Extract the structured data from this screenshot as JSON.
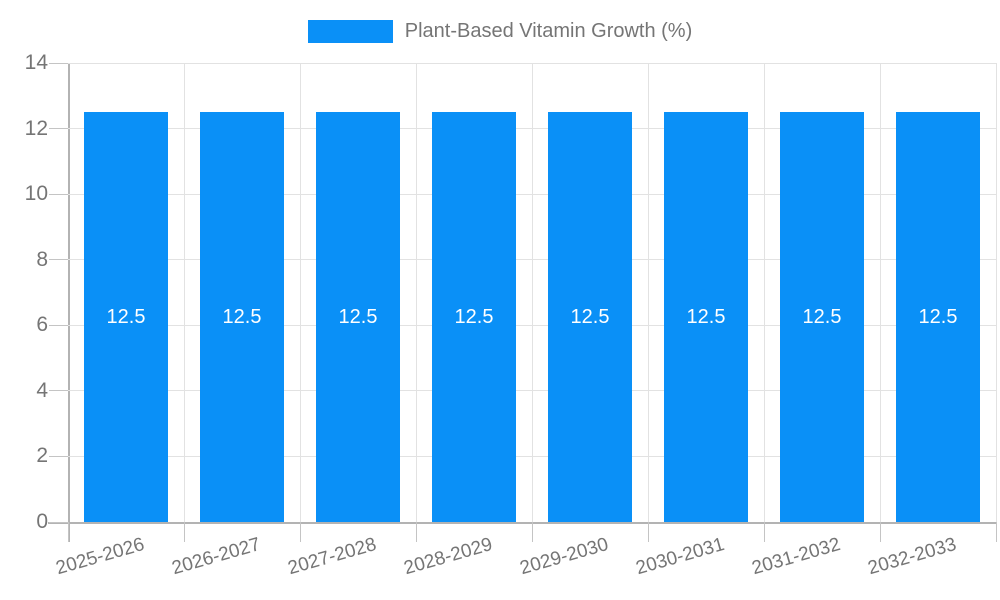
{
  "legend": {
    "label": "Plant-Based Vitamin Growth (%)"
  },
  "chart_data": {
    "type": "bar",
    "title": "Plant-Based Vitamin Growth (%)",
    "categories": [
      "2025-2026",
      "2026-2027",
      "2027-2028",
      "2028-2029",
      "2029-2030",
      "2030-2031",
      "2031-2032",
      "2032-2033"
    ],
    "series": [
      {
        "name": "Plant-Based Vitamin Growth (%)",
        "values": [
          12.5,
          12.5,
          12.5,
          12.5,
          12.5,
          12.5,
          12.5,
          12.5
        ],
        "value_labels": [
          "12.5",
          "12.5",
          "12.5",
          "12.5",
          "12.5",
          "12.5",
          "12.5",
          "12.5"
        ]
      }
    ],
    "xlabel": "",
    "ylabel": "",
    "ylim": [
      0,
      14
    ],
    "yticks": [
      0,
      2,
      4,
      6,
      8,
      10,
      12,
      14
    ],
    "grid": true,
    "legend_position": "top",
    "colors": {
      "bar": "#0a90f7",
      "bar_label": "#ffffff",
      "grid": "#e2e2e2",
      "axis": "#b3b3b3",
      "tick": "#c4c4c4",
      "text": "#757575",
      "background": "#ffffff"
    }
  }
}
